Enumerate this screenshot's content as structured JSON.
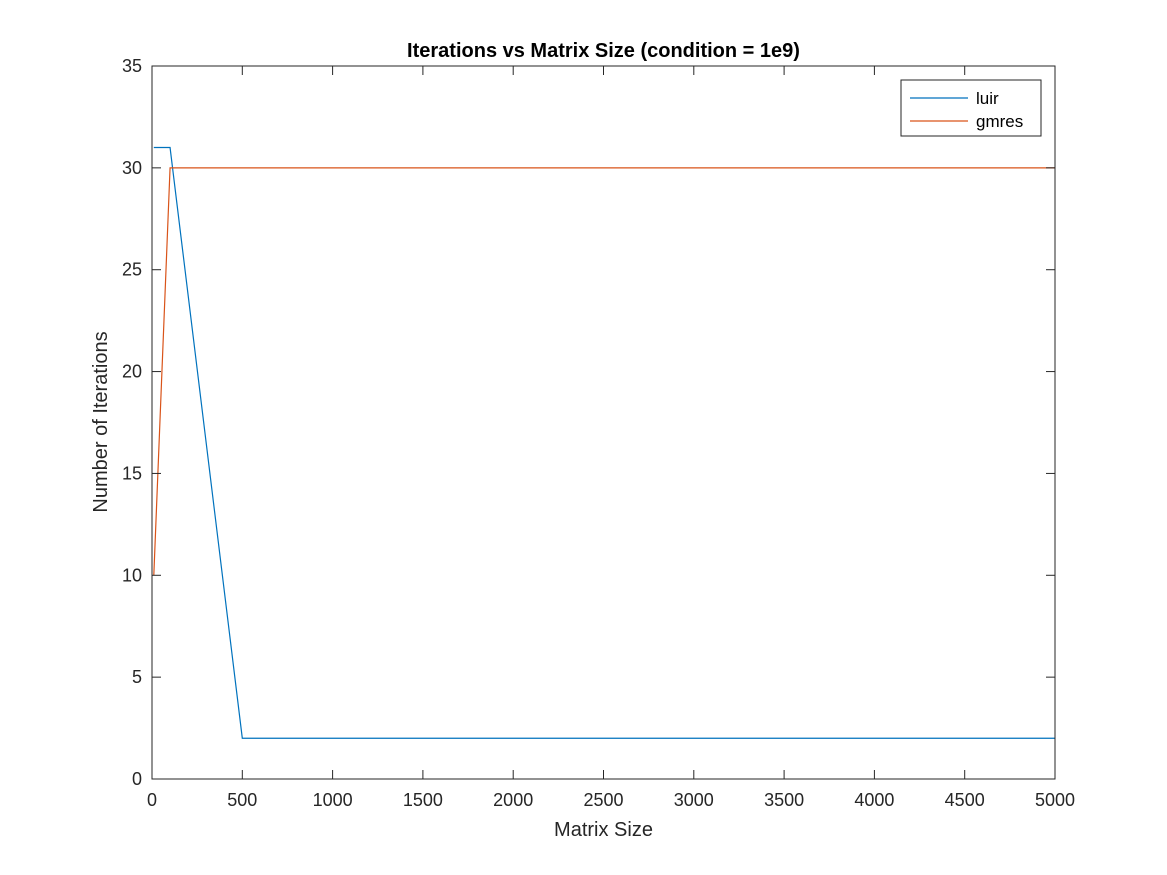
{
  "chart_data": {
    "type": "line",
    "title": "Iterations vs Matrix Size (condition = 1e9)",
    "xlabel": "Matrix Size",
    "ylabel": "Number of Iterations",
    "xlim": [
      0,
      5000
    ],
    "ylim": [
      0,
      35
    ],
    "xticks": [
      0,
      500,
      1000,
      1500,
      2000,
      2500,
      3000,
      3500,
      4000,
      4500,
      5000
    ],
    "yticks": [
      0,
      5,
      10,
      15,
      20,
      25,
      30,
      35
    ],
    "grid": false,
    "legend_position": "top-right",
    "series": [
      {
        "name": "luir",
        "color": "#0072BD",
        "x": [
          10,
          100,
          500,
          1000,
          5000
        ],
        "y": [
          31,
          31,
          2,
          2,
          2
        ]
      },
      {
        "name": "gmres",
        "color": "#D95319",
        "x": [
          10,
          100,
          500,
          1000,
          5000
        ],
        "y": [
          10,
          30,
          30,
          30,
          30
        ]
      }
    ]
  }
}
